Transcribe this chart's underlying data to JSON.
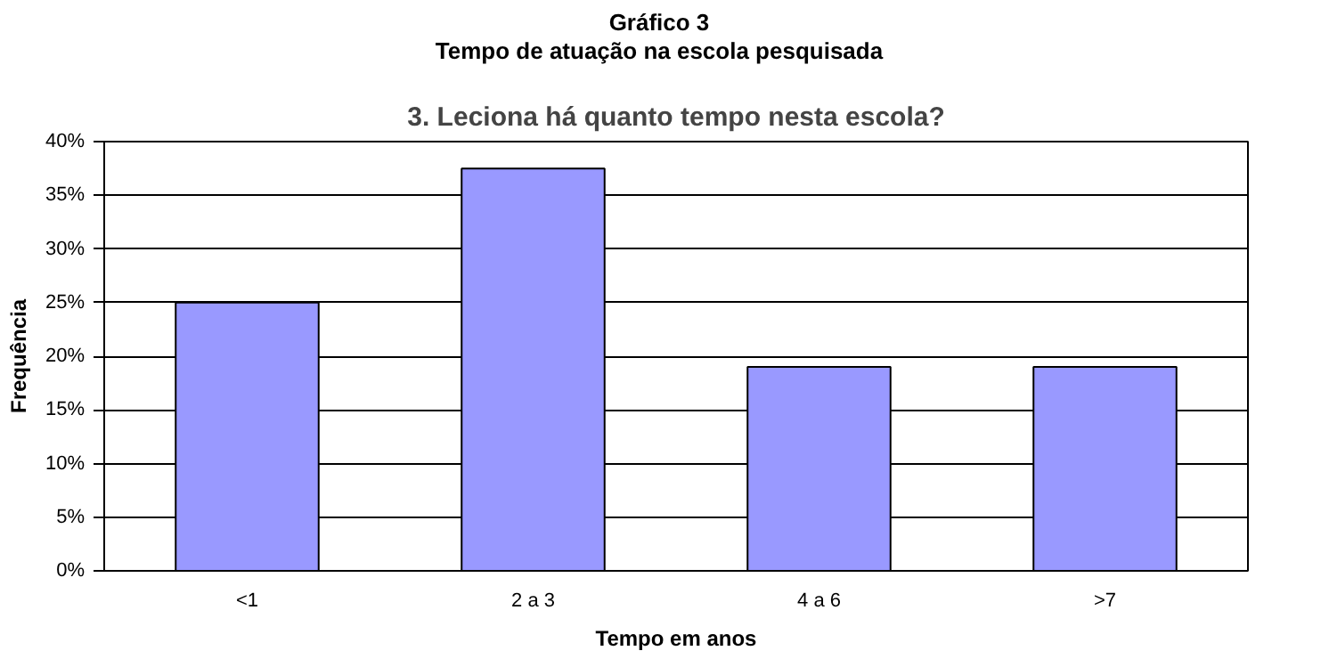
{
  "chart_data": {
    "type": "bar",
    "title": "3. Leciona há quanto tempo nesta escola?",
    "annotations": [
      "Gráfico 3",
      "Tempo de atuação na escola pesquisada"
    ],
    "xlabel": "Tempo em anos",
    "ylabel": "Frequência",
    "categories": [
      "<1",
      "2 a 3",
      "4 a 6",
      ">7"
    ],
    "values": [
      25,
      37.5,
      19,
      19
    ],
    "color": "#9999ff",
    "ylim": [
      0,
      40
    ],
    "yticks": [
      {
        "value": 0,
        "label": "0%"
      },
      {
        "value": 5,
        "label": "5%"
      },
      {
        "value": 10,
        "label": "10%"
      },
      {
        "value": 15,
        "label": "15%"
      },
      {
        "value": 20,
        "label": "20%"
      },
      {
        "value": 25,
        "label": "25%"
      },
      {
        "value": 30,
        "label": "30%"
      },
      {
        "value": 35,
        "label": "35%"
      },
      {
        "value": 40,
        "label": "40%"
      }
    ],
    "grid": "y"
  }
}
